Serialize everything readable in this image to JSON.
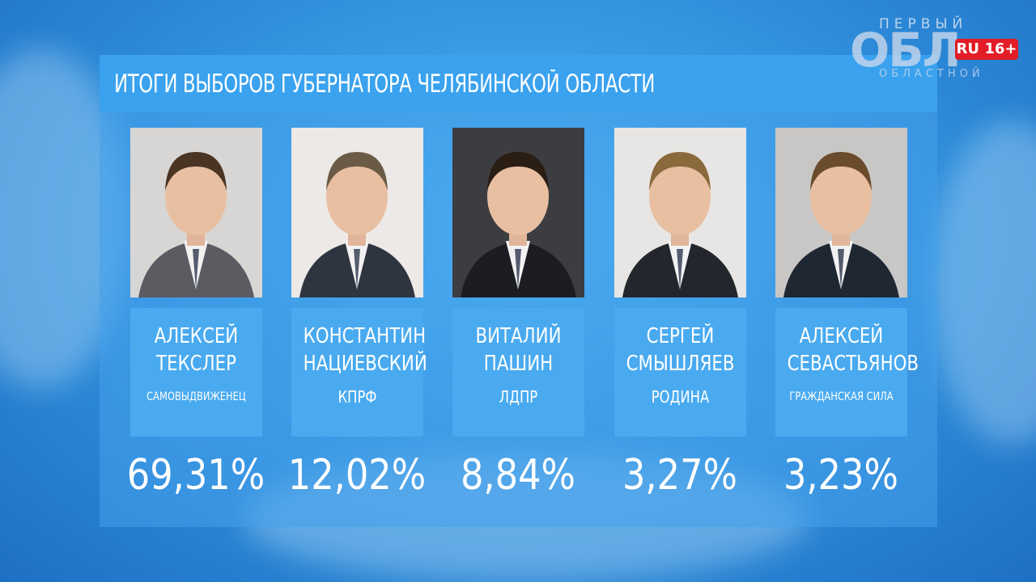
{
  "logo": {
    "top": "ПЕРВЫЙ",
    "big": "ОБЛ",
    "bottom": "ОБЛАСТНОЙ",
    "domain": "RU",
    "age": "16+"
  },
  "title": "ИТОГИ ВЫБОРОВ ГУБЕРНАТОРА ЧЕЛЯБИНСКОЙ ОБЛАСТИ",
  "candidates": [
    {
      "first_name": "АЛЕКСЕЙ",
      "last_name": "ТЕКСЛЕР",
      "party": "САМОВЫДВИЖЕНЕЦ",
      "result": "69,31%"
    },
    {
      "first_name": "КОНСТАНТИН",
      "last_name": "НАЦИЕВСКИЙ",
      "party": "КПРФ",
      "result": "12,02%"
    },
    {
      "first_name": "ВИТАЛИЙ",
      "last_name": "ПАШИН",
      "party": "ЛДПР",
      "result": "8,84%"
    },
    {
      "first_name": "СЕРГЕЙ",
      "last_name": "СМЫШЛЯЕВ",
      "party": "РОДИНА",
      "result": "3,27%"
    },
    {
      "first_name": "АЛЕКСЕЙ",
      "last_name": "СЕВАСТЬЯНОВ",
      "party": "ГРАЖДАНСКАЯ СИЛА",
      "result": "3,23%"
    }
  ]
}
